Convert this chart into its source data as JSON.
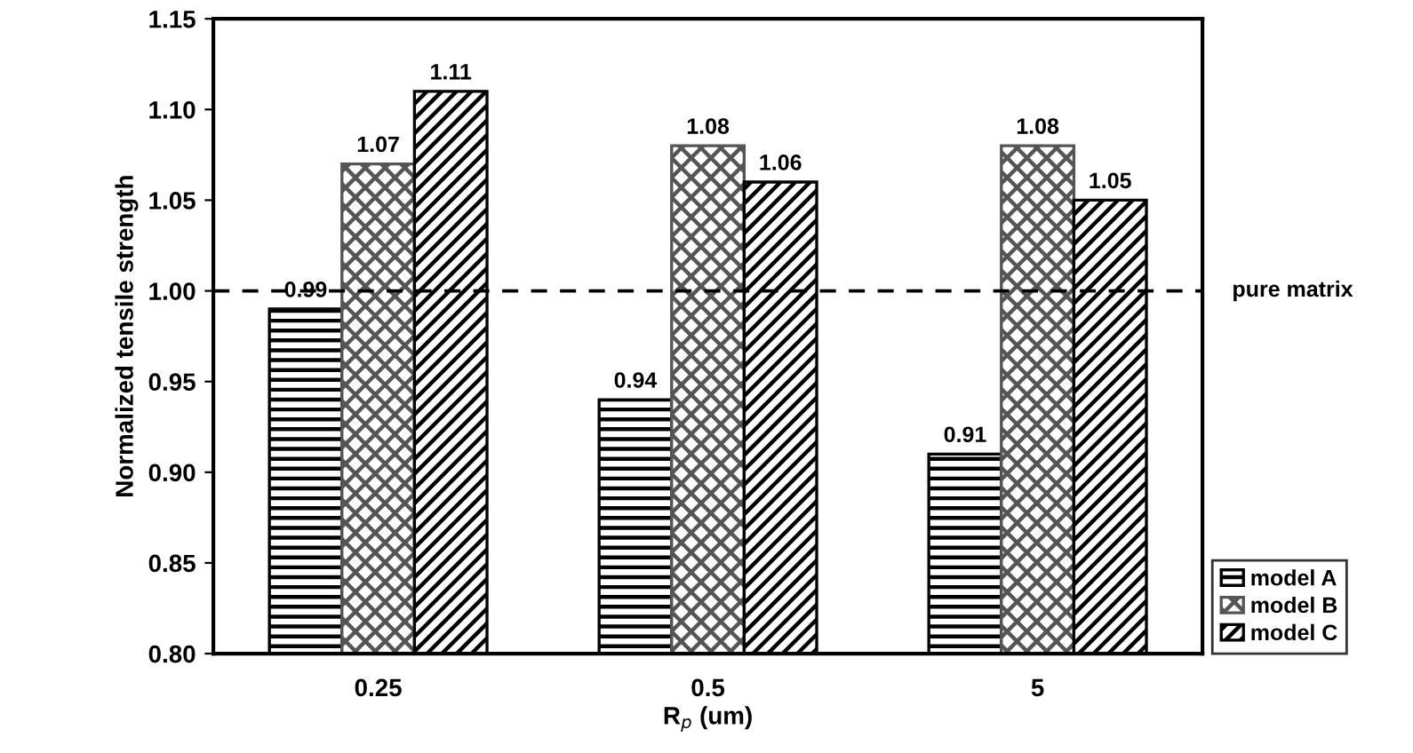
{
  "chart_data": {
    "type": "bar",
    "xlabel": "R$_{p}$ (um)",
    "ylabel": "Normalized tensile strength",
    "categories": [
      "0.25",
      "0.5",
      "5"
    ],
    "series": [
      {
        "name": "model A",
        "color": "#000000",
        "values": [
          0.99,
          0.94,
          0.91
        ]
      },
      {
        "name": "model B",
        "color": "#555555",
        "values": [
          1.07,
          1.08,
          1.08
        ]
      },
      {
        "name": "model C",
        "color": "#000000",
        "values": [
          1.11,
          1.06,
          1.05
        ]
      }
    ],
    "ylim": [
      0.8,
      1.15
    ],
    "yticks": [
      {
        "value": 0.8,
        "label": "0.80"
      },
      {
        "value": 0.85,
        "label": "0.85"
      },
      {
        "value": 0.9,
        "label": "0.90"
      },
      {
        "value": 0.95,
        "label": "0.95"
      },
      {
        "value": 1.0,
        "label": "1.00"
      },
      {
        "value": 1.05,
        "label": "1.05"
      },
      {
        "value": 1.1,
        "label": "1.10"
      },
      {
        "value": 1.15,
        "label": "1.15"
      }
    ],
    "ref_lines": [
      {
        "axis": "y",
        "value": 1.0,
        "label": "pure matrix",
        "color": "#000000",
        "line_style": "dashed"
      }
    ],
    "data_labels": true,
    "legend": "bottom right",
    "grid": false
  }
}
